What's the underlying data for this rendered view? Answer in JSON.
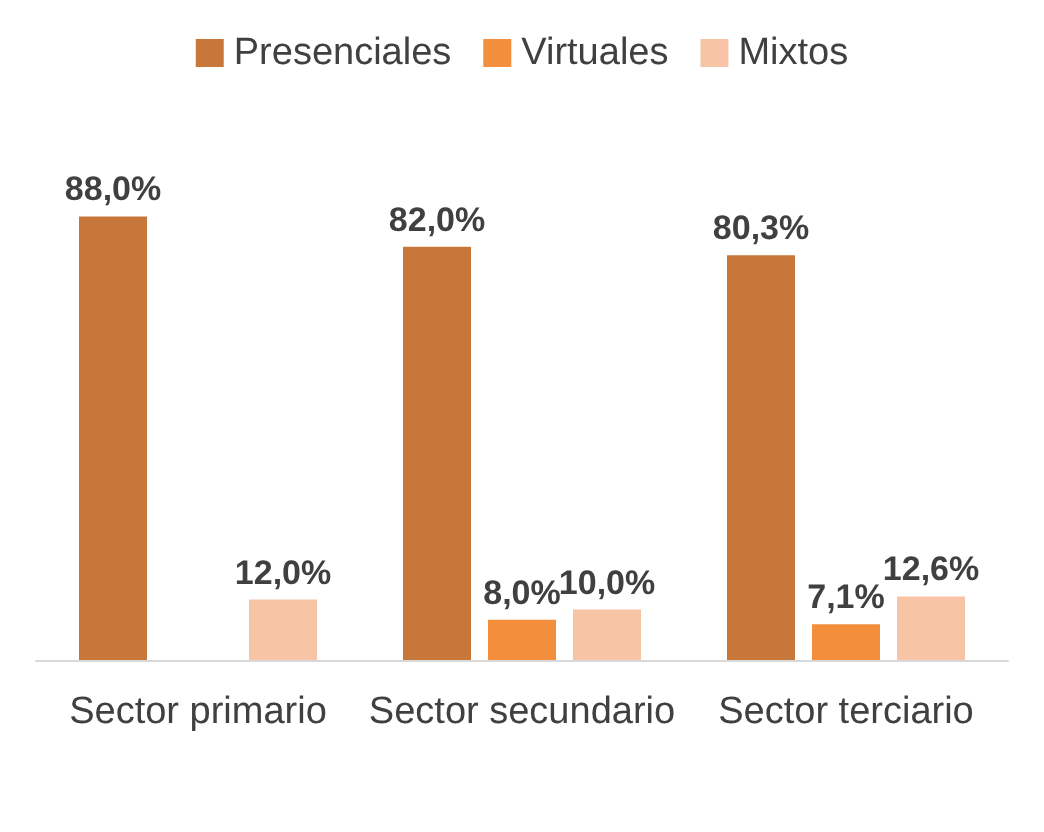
{
  "chart_data": {
    "type": "bar",
    "categories": [
      "Sector primario",
      "Sector secundario",
      "Sector terciario"
    ],
    "series": [
      {
        "name": "Presenciales",
        "color": "#c8773a",
        "values": [
          88.0,
          82.0,
          80.3
        ],
        "value_labels": [
          "88,0%",
          "82,0%",
          "80,3%"
        ]
      },
      {
        "name": "Virtuales",
        "color": "#f28e3c",
        "values": [
          null,
          8.0,
          7.1
        ],
        "value_labels": [
          null,
          "8,0%",
          "7,1%"
        ]
      },
      {
        "name": "Mixtos",
        "color": "#f8c4a6",
        "values": [
          12.0,
          10.0,
          12.6
        ],
        "value_labels": [
          "12,0%",
          "10,0%",
          "12,6%"
        ]
      }
    ],
    "legend": "top",
    "grid": false
  }
}
